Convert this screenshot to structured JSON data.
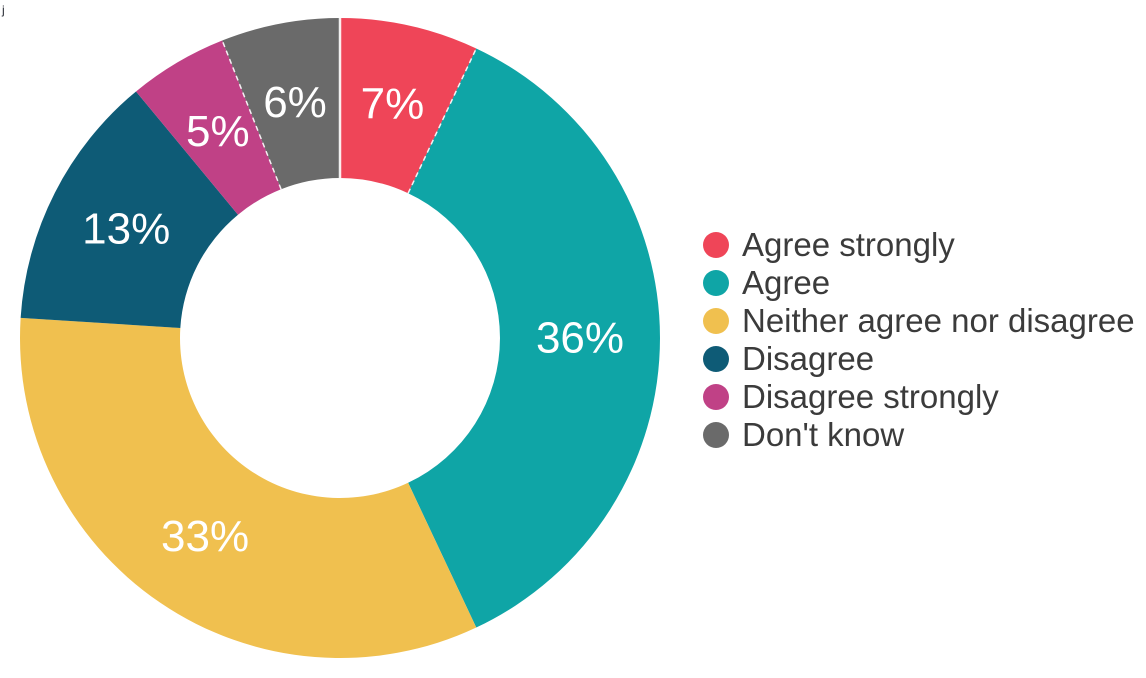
{
  "page": {
    "background": "#FFFFFF",
    "stray_mark": "j"
  },
  "chart_data": {
    "type": "pie",
    "subtype": "donut",
    "title": "",
    "categories": [
      "Agree strongly",
      "Agree",
      "Neither agree nor disagree",
      "Disagree",
      "Disagree strongly",
      "Don't know"
    ],
    "values": [
      7,
      36,
      33,
      13,
      5,
      6
    ],
    "labels": [
      "7%",
      "36%",
      "33%",
      "13%",
      "5%",
      "6%"
    ],
    "colors": [
      "#EF4558",
      "#0FA5A6",
      "#F0C04F",
      "#0E5B76",
      "#C04186",
      "#6A6A6A"
    ],
    "unit": "%",
    "start_angle_deg": 0,
    "direction": "clockwise",
    "inner_radius_ratio": 0.5,
    "slice_label_color": "#FFFFFF",
    "legend_position": "right",
    "legend_text_color": "#3B3B3B"
  }
}
